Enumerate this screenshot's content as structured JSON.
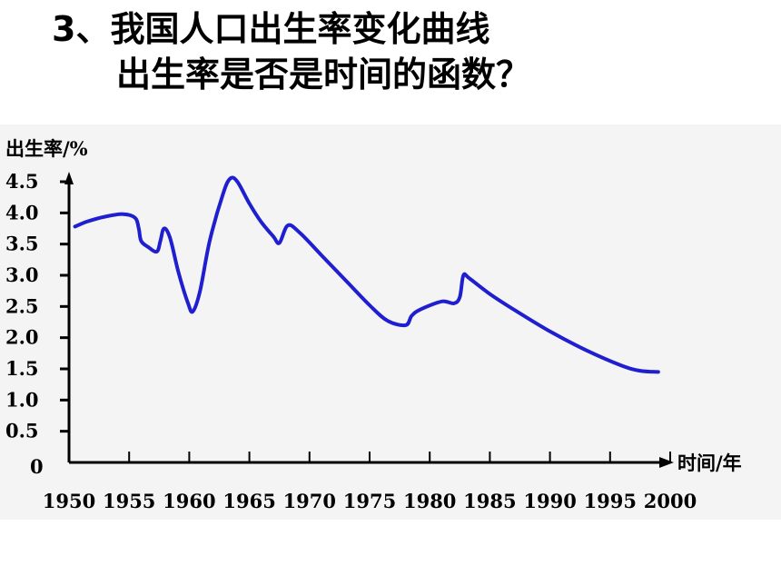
{
  "title": "3、我国人口出生率变化曲线",
  "subtitle": "出生率是否是时间的函数？",
  "chart_data": {
    "type": "line",
    "ylabel": "出生率/%",
    "xlabel": "时间/年",
    "xlim": [
      1950,
      2000
    ],
    "ylim": [
      0,
      4.5
    ],
    "x_ticks": [
      1950,
      1955,
      1960,
      1965,
      1970,
      1975,
      1980,
      1985,
      1990,
      1995,
      2000
    ],
    "y_ticks": [
      {
        "value": 0,
        "label": "0"
      },
      {
        "value": 0.5,
        "label": "0.5"
      },
      {
        "value": 1.0,
        "label": "1.0"
      },
      {
        "value": 1.5,
        "label": "1.5"
      },
      {
        "value": 2.0,
        "label": "2.0"
      },
      {
        "value": 2.5,
        "label": "2.5"
      },
      {
        "value": 3.0,
        "label": "3.0"
      },
      {
        "value": 3.5,
        "label": "3.5"
      },
      {
        "value": 4.0,
        "label": "4.0"
      },
      {
        "value": 4.5,
        "label": "4.5"
      }
    ],
    "series": [
      {
        "color": "#1f1fd0",
        "points": [
          [
            1950.5,
            3.78
          ],
          [
            1951.5,
            3.86
          ],
          [
            1953,
            3.94
          ],
          [
            1954.5,
            3.98
          ],
          [
            1955.5,
            3.92
          ],
          [
            1955.8,
            3.75
          ],
          [
            1956.0,
            3.55
          ],
          [
            1956.6,
            3.45
          ],
          [
            1957.3,
            3.38
          ],
          [
            1957.6,
            3.55
          ],
          [
            1957.9,
            3.75
          ],
          [
            1958.4,
            3.6
          ],
          [
            1959.1,
            3.05
          ],
          [
            1959.9,
            2.55
          ],
          [
            1960.3,
            2.42
          ],
          [
            1960.9,
            2.75
          ],
          [
            1961.7,
            3.55
          ],
          [
            1962.8,
            4.3
          ],
          [
            1963.4,
            4.55
          ],
          [
            1964.0,
            4.5
          ],
          [
            1965.0,
            4.15
          ],
          [
            1966.0,
            3.85
          ],
          [
            1967.0,
            3.62
          ],
          [
            1967.5,
            3.52
          ],
          [
            1968.2,
            3.8
          ],
          [
            1969.2,
            3.68
          ],
          [
            1971,
            3.32
          ],
          [
            1973,
            2.92
          ],
          [
            1975,
            2.52
          ],
          [
            1976.5,
            2.27
          ],
          [
            1978,
            2.2
          ],
          [
            1978.5,
            2.35
          ],
          [
            1979.2,
            2.45
          ],
          [
            1981,
            2.58
          ],
          [
            1982,
            2.55
          ],
          [
            1982.5,
            2.65
          ],
          [
            1982.8,
            3.0
          ],
          [
            1983.3,
            2.95
          ],
          [
            1985,
            2.7
          ],
          [
            1987,
            2.45
          ],
          [
            1990,
            2.1
          ],
          [
            1993,
            1.8
          ],
          [
            1996,
            1.55
          ],
          [
            1997.5,
            1.47
          ],
          [
            1999,
            1.45
          ]
        ]
      }
    ]
  }
}
